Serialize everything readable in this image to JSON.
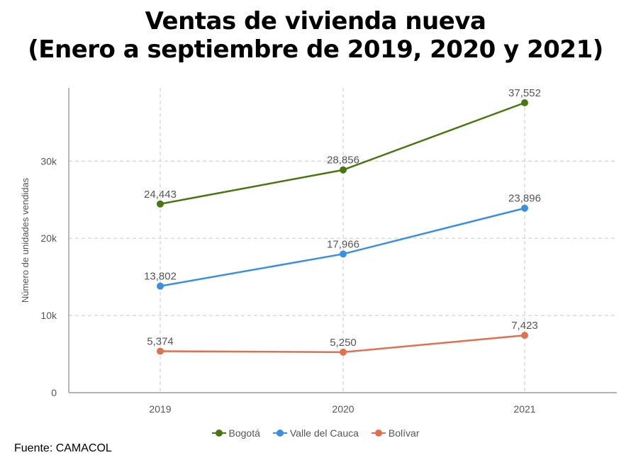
{
  "title_line1": "Ventas de vivienda nueva",
  "title_line2": "(Enero a septiembre de 2019, 2020 y 2021)",
  "source": "Fuente: CAMACOL",
  "chart_data": {
    "type": "line",
    "x": [
      "2019",
      "2020",
      "2021"
    ],
    "ylabel": "Número de unidades vendidas",
    "ylim": [
      0,
      37552
    ],
    "yticks": [
      {
        "value": 0,
        "label": "0"
      },
      {
        "value": 10000,
        "label": "10k"
      },
      {
        "value": 20000,
        "label": "20k"
      },
      {
        "value": 30000,
        "label": "30k"
      }
    ],
    "grid": true,
    "legend_position": "bottom-center",
    "series": [
      {
        "name": "Bogotá",
        "color": "#4a7610",
        "values": [
          24443,
          28856,
          37552
        ],
        "labels": [
          "24,443",
          "28,856",
          "37,552"
        ]
      },
      {
        "name": "Valle del Cauca",
        "color": "#3a8fe0",
        "values": [
          13802,
          17966,
          23896
        ],
        "labels": [
          "13,802",
          "17,966",
          "23,896"
        ]
      },
      {
        "name": "Bolívar",
        "color": "#e07050",
        "values": [
          5374,
          5250,
          7423
        ],
        "labels": [
          "5,374",
          "5,250",
          "7,423"
        ]
      }
    ]
  }
}
